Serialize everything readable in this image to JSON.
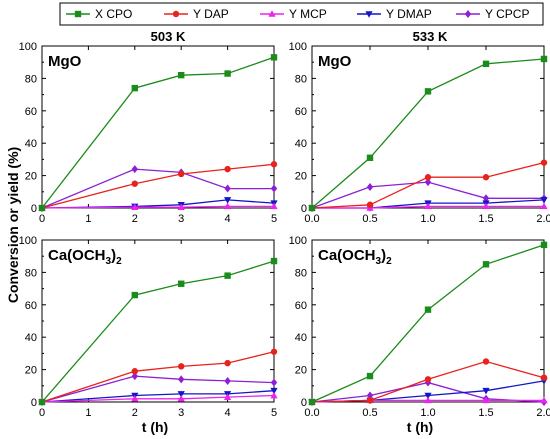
{
  "chart_data": {
    "ylabel": "Conversion or yield (%)",
    "xlabel": "t (h)",
    "column_headers": [
      "503 K",
      "533 K"
    ],
    "legend": [
      {
        "name": "X CPO",
        "color": "#1a8c1a",
        "marker": "square"
      },
      {
        "name": "Y DAP",
        "color": "#e8231c",
        "marker": "circle"
      },
      {
        "name": "Y MCP",
        "color": "#ee22ee",
        "marker": "triangle-up"
      },
      {
        "name": "Y DMAP",
        "color": "#1515c8",
        "marker": "triangle-down"
      },
      {
        "name": "Y CPCP",
        "color": "#8e1fd6",
        "marker": "diamond"
      }
    ],
    "panels": [
      {
        "type": "line",
        "catalyst": "MgO",
        "catalyst_sub": "",
        "catalyst_tail": "",
        "x": [
          0,
          2,
          3,
          4,
          5
        ],
        "xlim": [
          0,
          5
        ],
        "xticks": [
          0,
          1,
          2,
          3,
          4,
          5
        ],
        "xtick_labels": [
          "0",
          "1",
          "2",
          "3",
          "4",
          "5"
        ],
        "ylim": [
          0,
          100
        ],
        "yticks": [
          0,
          20,
          40,
          60,
          80,
          100
        ],
        "series": [
          {
            "name": "X CPO",
            "values": [
              0,
              74,
              82,
              83,
              93
            ]
          },
          {
            "name": "Y DAP",
            "values": [
              0,
              15,
              21,
              24,
              27
            ]
          },
          {
            "name": "Y MCP",
            "values": [
              0,
              0.5,
              0.5,
              1,
              1
            ]
          },
          {
            "name": "Y DMAP",
            "values": [
              0,
              1,
              2,
              5,
              3
            ]
          },
          {
            "name": "Y CPCP",
            "values": [
              0,
              24,
              22,
              12,
              12
            ]
          }
        ]
      },
      {
        "type": "line",
        "catalyst": "MgO",
        "catalyst_sub": "",
        "catalyst_tail": "",
        "x": [
          0,
          0.5,
          1.0,
          1.5,
          2.0
        ],
        "xlim": [
          0,
          2
        ],
        "xticks": [
          0,
          0.5,
          1.0,
          1.5,
          2.0
        ],
        "xtick_labels": [
          "0.0",
          "0.5",
          "1.0",
          "1.5",
          "2.0"
        ],
        "ylim": [
          0,
          100
        ],
        "yticks": [
          0,
          20,
          40,
          60,
          80,
          100
        ],
        "series": [
          {
            "name": "X CPO",
            "values": [
              0,
              31,
              72,
              89,
              92
            ]
          },
          {
            "name": "Y DAP",
            "values": [
              0,
              2,
              19,
              19,
              28
            ]
          },
          {
            "name": "Y MCP",
            "values": [
              0,
              0,
              1,
              1,
              1
            ]
          },
          {
            "name": "Y DMAP",
            "values": [
              0,
              0,
              3,
              3,
              5
            ]
          },
          {
            "name": "Y CPCP",
            "values": [
              0,
              13,
              16,
              6,
              6
            ]
          }
        ]
      },
      {
        "type": "line",
        "catalyst": "Ca(OCH",
        "catalyst_sub": "3",
        "catalyst_tail": ")",
        "catalyst_sub2": "2",
        "x": [
          0,
          2,
          3,
          4,
          5
        ],
        "xlim": [
          0,
          5
        ],
        "xticks": [
          0,
          1,
          2,
          3,
          4,
          5
        ],
        "xtick_labels": [
          "0",
          "1",
          "2",
          "3",
          "4",
          "5"
        ],
        "ylim": [
          0,
          100
        ],
        "yticks": [
          0,
          20,
          40,
          60,
          80,
          100
        ],
        "series": [
          {
            "name": "X CPO",
            "values": [
              0,
              66,
              73,
              78,
              87
            ]
          },
          {
            "name": "Y DAP",
            "values": [
              0,
              19,
              22,
              24,
              31
            ]
          },
          {
            "name": "Y MCP",
            "values": [
              0,
              2,
              2,
              3,
              4
            ]
          },
          {
            "name": "Y DMAP",
            "values": [
              0,
              4,
              5,
              5,
              7
            ]
          },
          {
            "name": "Y CPCP",
            "values": [
              0,
              16,
              14,
              13,
              12
            ]
          }
        ]
      },
      {
        "type": "line",
        "catalyst": "Ca(OCH",
        "catalyst_sub": "3",
        "catalyst_tail": ")",
        "catalyst_sub2": "2",
        "x": [
          0,
          0.5,
          1.0,
          1.5,
          2.0
        ],
        "xlim": [
          0,
          2
        ],
        "xticks": [
          0,
          0.5,
          1.0,
          1.5,
          2.0
        ],
        "xtick_labels": [
          "0.0",
          "0.5",
          "1.0",
          "1.5",
          "2.0"
        ],
        "ylim": [
          0,
          100
        ],
        "yticks": [
          0,
          20,
          40,
          60,
          80,
          100
        ],
        "series": [
          {
            "name": "X CPO",
            "values": [
              0,
              16,
              57,
              85,
              97
            ]
          },
          {
            "name": "Y DAP",
            "values": [
              0,
              1,
              14,
              25,
              15
            ]
          },
          {
            "name": "Y MCP",
            "values": [
              0,
              1,
              1,
              1,
              1
            ]
          },
          {
            "name": "Y DMAP",
            "values": [
              0,
              1,
              4,
              7,
              13
            ]
          },
          {
            "name": "Y CPCP",
            "values": [
              0,
              4,
              12,
              2,
              0
            ]
          }
        ]
      }
    ]
  }
}
